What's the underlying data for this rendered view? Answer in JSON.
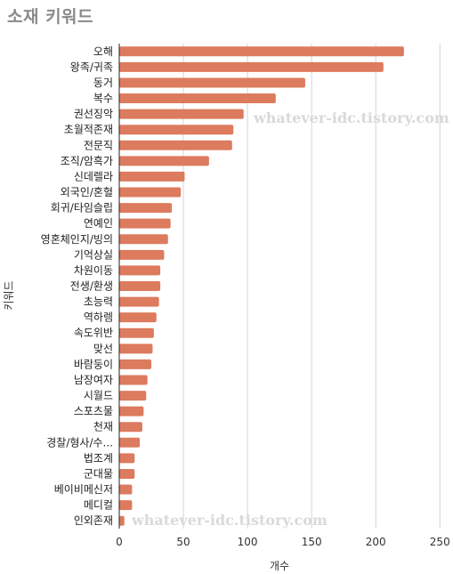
{
  "chart_data": {
    "type": "bar",
    "orientation": "horizontal",
    "title": "소재 키워드",
    "xlabel": "개수",
    "ylabel": "키워드",
    "xlim": [
      0,
      260
    ],
    "xticks": [
      0,
      50,
      100,
      150,
      200,
      250
    ],
    "grid": "vertical",
    "bar_color": "#dd7b5e",
    "categories": [
      "오해",
      "왕족/귀족",
      "동거",
      "복수",
      "권선징악",
      "초월적존재",
      "전문직",
      "조직/암흑가",
      "신데렐라",
      "외국인/혼혈",
      "회귀/타임슬립",
      "연예인",
      "영혼체인지/빙의",
      "기억상실",
      "차원이동",
      "전생/환생",
      "초능력",
      "역하렘",
      "속도위반",
      "맞선",
      "바람둥이",
      "남장여자",
      "시월드",
      "스포츠물",
      "천재",
      "경찰/형사/수...",
      "법조계",
      "군대물",
      "베이비메신저",
      "메디컬",
      "인외존재"
    ],
    "values": [
      222,
      206,
      145,
      122,
      97,
      89,
      88,
      70,
      51,
      48,
      41,
      40,
      38,
      35,
      32,
      32,
      31,
      29,
      27,
      26,
      25,
      22,
      21,
      19,
      18,
      16,
      12,
      12,
      10,
      10,
      4
    ]
  },
  "watermarks": [
    "whatever-idc.tistory.com",
    "whatever-idc.tistory.com"
  ]
}
